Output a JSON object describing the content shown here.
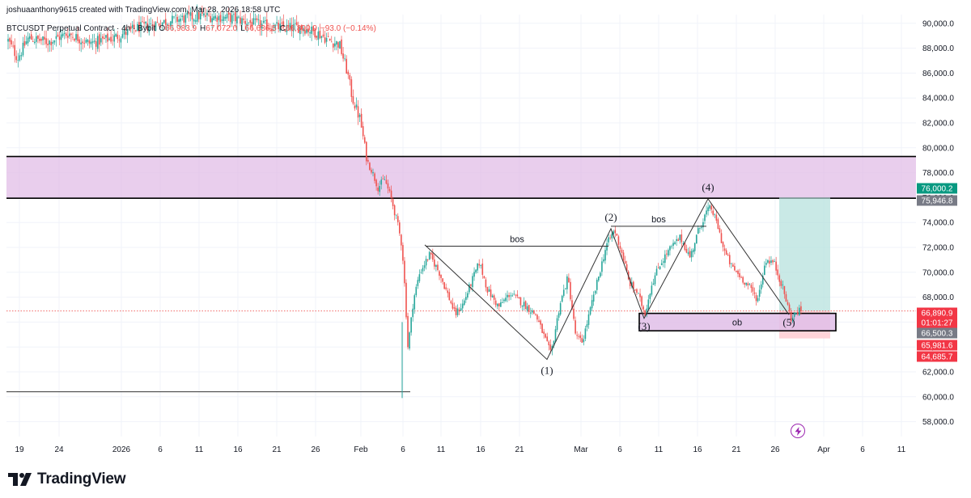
{
  "credit": "joshuaanthony9615 created with TradingView.com, Mar 28, 2026 18:58 UTC",
  "legend": {
    "symbol": "BTCUSDT Perpetual Contract · 4h · Bybit",
    "open_key": "O",
    "open": "66,983.9",
    "high_key": "H",
    "high": "67,072.0",
    "low_key": "L",
    "low": "66,636.5",
    "close_key": "C",
    "close": "66,890.9",
    "change": "−93.0 (−0.14%)"
  },
  "brand": "TradingView",
  "colors": {
    "up": "#26a69a",
    "down": "#ef5350",
    "zone_purple": "#e1bee7",
    "green_zone": "#b2dfdb",
    "red_zone": "#ffcdd2",
    "grid": "#f0f3fa"
  },
  "icons": [
    "tradingview-logo-icon",
    "lightning-icon"
  ],
  "chart_data": {
    "type": "candlestick",
    "timeframe": "4h",
    "ylim": [
      56800,
      90800
    ],
    "y_ticks": [
      "90,000.0",
      "88,000.0",
      "86,000.0",
      "84,000.0",
      "82,000.0",
      "80,000.0",
      "78,000.0",
      "76,000.0",
      "74,000.0",
      "72,000.0",
      "70,000.0",
      "68,000.0",
      "66,000.0",
      "64,000.0",
      "62,000.0",
      "60,000.0",
      "58,000.0"
    ],
    "x_ticks": [
      "19",
      "24",
      "2026",
      "6",
      "11",
      "16",
      "21",
      "26",
      "Feb",
      "6",
      "11",
      "16",
      "21",
      "Mar",
      "6",
      "11",
      "16",
      "21",
      "26",
      "Apr",
      "6",
      "11"
    ],
    "price_path": [
      [
        0,
        88600
      ],
      [
        12,
        87200
      ],
      [
        25,
        88800
      ],
      [
        50,
        88500
      ],
      [
        75,
        89200
      ],
      [
        100,
        88400
      ],
      [
        130,
        88800
      ],
      [
        160,
        89600
      ],
      [
        200,
        90200
      ],
      [
        240,
        90600
      ],
      [
        280,
        90400
      ],
      [
        310,
        89900
      ],
      [
        345,
        89600
      ],
      [
        365,
        89700
      ],
      [
        385,
        89200
      ],
      [
        400,
        88600
      ],
      [
        412,
        88300
      ],
      [
        422,
        86000
      ],
      [
        428,
        84000
      ],
      [
        438,
        82200
      ],
      [
        446,
        79000
      ],
      [
        452,
        78200
      ],
      [
        460,
        76800
      ],
      [
        468,
        77500
      ],
      [
        476,
        76000
      ],
      [
        484,
        74000
      ],
      [
        490,
        72000
      ],
      [
        494,
        68000
      ],
      [
        497,
        64000
      ],
      [
        500,
        65500
      ],
      [
        504,
        67800
      ],
      [
        512,
        70000
      ],
      [
        524,
        71400
      ],
      [
        536,
        70000
      ],
      [
        548,
        68000
      ],
      [
        556,
        66600
      ],
      [
        566,
        67500
      ],
      [
        576,
        69200
      ],
      [
        586,
        70800
      ],
      [
        596,
        68600
      ],
      [
        610,
        67200
      ],
      [
        624,
        68300
      ],
      [
        640,
        67500
      ],
      [
        656,
        66600
      ],
      [
        668,
        64600
      ],
      [
        675,
        63400
      ],
      [
        686,
        67400
      ],
      [
        696,
        69600
      ],
      [
        706,
        64800
      ],
      [
        714,
        64400
      ],
      [
        724,
        67000
      ],
      [
        734,
        69600
      ],
      [
        744,
        72200
      ],
      [
        754,
        73400
      ],
      [
        764,
        71400
      ],
      [
        772,
        69200
      ],
      [
        782,
        68400
      ],
      [
        792,
        66700
      ],
      [
        800,
        69000
      ],
      [
        810,
        70600
      ],
      [
        822,
        71800
      ],
      [
        836,
        72800
      ],
      [
        848,
        71200
      ],
      [
        858,
        73300
      ],
      [
        868,
        74800
      ],
      [
        874,
        75200
      ],
      [
        882,
        73800
      ],
      [
        890,
        71800
      ],
      [
        900,
        70400
      ],
      [
        910,
        69700
      ],
      [
        922,
        68800
      ],
      [
        932,
        67800
      ],
      [
        942,
        71000
      ],
      [
        952,
        70800
      ],
      [
        962,
        69000
      ],
      [
        968,
        67600
      ],
      [
        974,
        66200
      ],
      [
        980,
        66800
      ],
      [
        986,
        66900
      ]
    ],
    "zones": [
      {
        "kind": "supply",
        "top": 79300,
        "bottom": 75950,
        "x_start_index": 0,
        "x_end": "right-edge"
      },
      {
        "kind": "ob",
        "label": "ob",
        "top": 66700,
        "bottom": 65300
      },
      {
        "kind": "target",
        "top": 76000.2,
        "bottom": 66890.9
      },
      {
        "kind": "stop",
        "top": 66890.9,
        "bottom": 64685.7
      }
    ],
    "horizontal_line": {
      "price": 60400
    },
    "wave_points": [
      {
        "label": "",
        "price": 72200
      },
      {
        "label": "(1)",
        "price": 63000
      },
      {
        "label": "(2)",
        "price": 73500
      },
      {
        "label": "(3)",
        "price": 66300
      },
      {
        "label": "(4)",
        "price": 75900
      },
      {
        "label": "(5)",
        "price": 66600
      }
    ],
    "bos_lines": [
      {
        "label": "bos",
        "price": 72100
      },
      {
        "label": "bos",
        "price": 73700
      }
    ],
    "price_tags": [
      {
        "value": "76,000.2",
        "color": "#089981"
      },
      {
        "value": "75,946.8",
        "color": "#787b86"
      },
      {
        "value": "66,890.9",
        "color": "#f23645"
      },
      {
        "value": "01:01:27",
        "color": "#f23645"
      },
      {
        "value": "66,500.3",
        "color": "#787b86"
      },
      {
        "value": "65,981.6",
        "color": "#f23645"
      },
      {
        "value": "64,685.7",
        "color": "#f23645"
      }
    ]
  }
}
